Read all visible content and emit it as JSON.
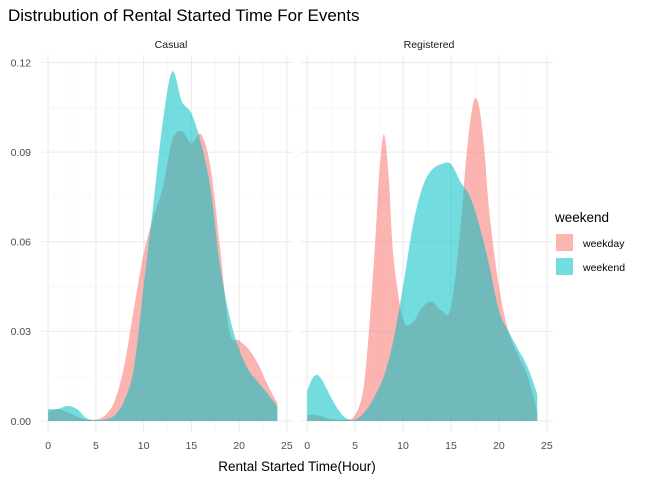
{
  "chart_data": {
    "type": "area",
    "title": "Distrubution of Rental Started Time For Events",
    "xlabel": "Rental Started Time(Hour)",
    "ylabel": "",
    "xlim": [
      0,
      25
    ],
    "ylim": [
      0,
      0.12
    ],
    "x_ticks": [
      0,
      5,
      10,
      15,
      20,
      25
    ],
    "x_tick_labels": [
      "0",
      "5",
      "10",
      "15",
      "20",
      "25"
    ],
    "y_ticks": [
      0,
      0.03,
      0.06,
      0.09,
      0.12
    ],
    "y_tick_labels": [
      "0.00",
      "0.03",
      "0.06",
      "0.09",
      "0.12"
    ],
    "grid": true,
    "legend": {
      "title": "weekend",
      "position": "right",
      "entries": [
        {
          "label": "weekday",
          "color": "#F8766D"
        },
        {
          "label": "weekend",
          "color": "#00BFC4"
        }
      ]
    },
    "facets": [
      {
        "label": "Casual",
        "series": [
          {
            "name": "weekday",
            "color": "#F8766D",
            "x": [
              0,
              1,
              2,
              3,
              4,
              5,
              6,
              7,
              8,
              9,
              10,
              11,
              12,
              13,
              14,
              15,
              16,
              17,
              18,
              19,
              20,
              21,
              22,
              23,
              24
            ],
            "y": [
              0.003,
              0.004,
              0.003,
              0.0015,
              0.0005,
              0.0005,
              0.002,
              0.007,
              0.019,
              0.038,
              0.056,
              0.068,
              0.078,
              0.094,
              0.097,
              0.093,
              0.096,
              0.085,
              0.058,
              0.03,
              0.027,
              0.024,
              0.019,
              0.012,
              0.006
            ]
          },
          {
            "name": "weekend",
            "color": "#00BFC4",
            "x": [
              0,
              1,
              2,
              3,
              4,
              5,
              6,
              7,
              8,
              9,
              10,
              11,
              12,
              13,
              14,
              15,
              16,
              17,
              18,
              19,
              20,
              21,
              22,
              23,
              24
            ],
            "y": [
              0.004,
              0.004,
              0.005,
              0.004,
              0.001,
              0.0003,
              0.0006,
              0.002,
              0.007,
              0.018,
              0.045,
              0.072,
              0.1,
              0.117,
              0.107,
              0.103,
              0.093,
              0.078,
              0.052,
              0.035,
              0.024,
              0.017,
              0.013,
              0.009,
              0.005
            ]
          }
        ]
      },
      {
        "label": "Registered",
        "series": [
          {
            "name": "weekday",
            "color": "#F8766D",
            "x": [
              0,
              1,
              2,
              3,
              4,
              5,
              6,
              7,
              7.5,
              8,
              8.5,
              9,
              10,
              11,
              12,
              13,
              14,
              15,
              16,
              16.5,
              17,
              17.5,
              18,
              18.5,
              19,
              20,
              21,
              22,
              23,
              24
            ],
            "y": [
              0.002,
              0.002,
              0.001,
              0.0005,
              0.0005,
              0.002,
              0.014,
              0.055,
              0.082,
              0.096,
              0.082,
              0.055,
              0.034,
              0.033,
              0.038,
              0.04,
              0.037,
              0.038,
              0.065,
              0.085,
              0.1,
              0.108,
              0.104,
              0.09,
              0.07,
              0.045,
              0.03,
              0.022,
              0.015,
              0.003
            ]
          },
          {
            "name": "weekend",
            "color": "#00BFC4",
            "x": [
              0,
              0.5,
              1,
              1.5,
              2,
              3,
              4,
              5,
              6,
              7,
              8,
              9,
              10,
              11,
              12,
              13,
              14,
              15,
              16,
              17,
              18,
              19,
              20,
              21,
              22,
              23,
              24
            ],
            "y": [
              0.01,
              0.014,
              0.0155,
              0.014,
              0.011,
              0.005,
              0.001,
              0.0005,
              0.003,
              0.008,
              0.015,
              0.027,
              0.045,
              0.065,
              0.078,
              0.084,
              0.086,
              0.086,
              0.08,
              0.075,
              0.065,
              0.052,
              0.037,
              0.03,
              0.024,
              0.018,
              0.009
            ]
          }
        ]
      }
    ]
  }
}
